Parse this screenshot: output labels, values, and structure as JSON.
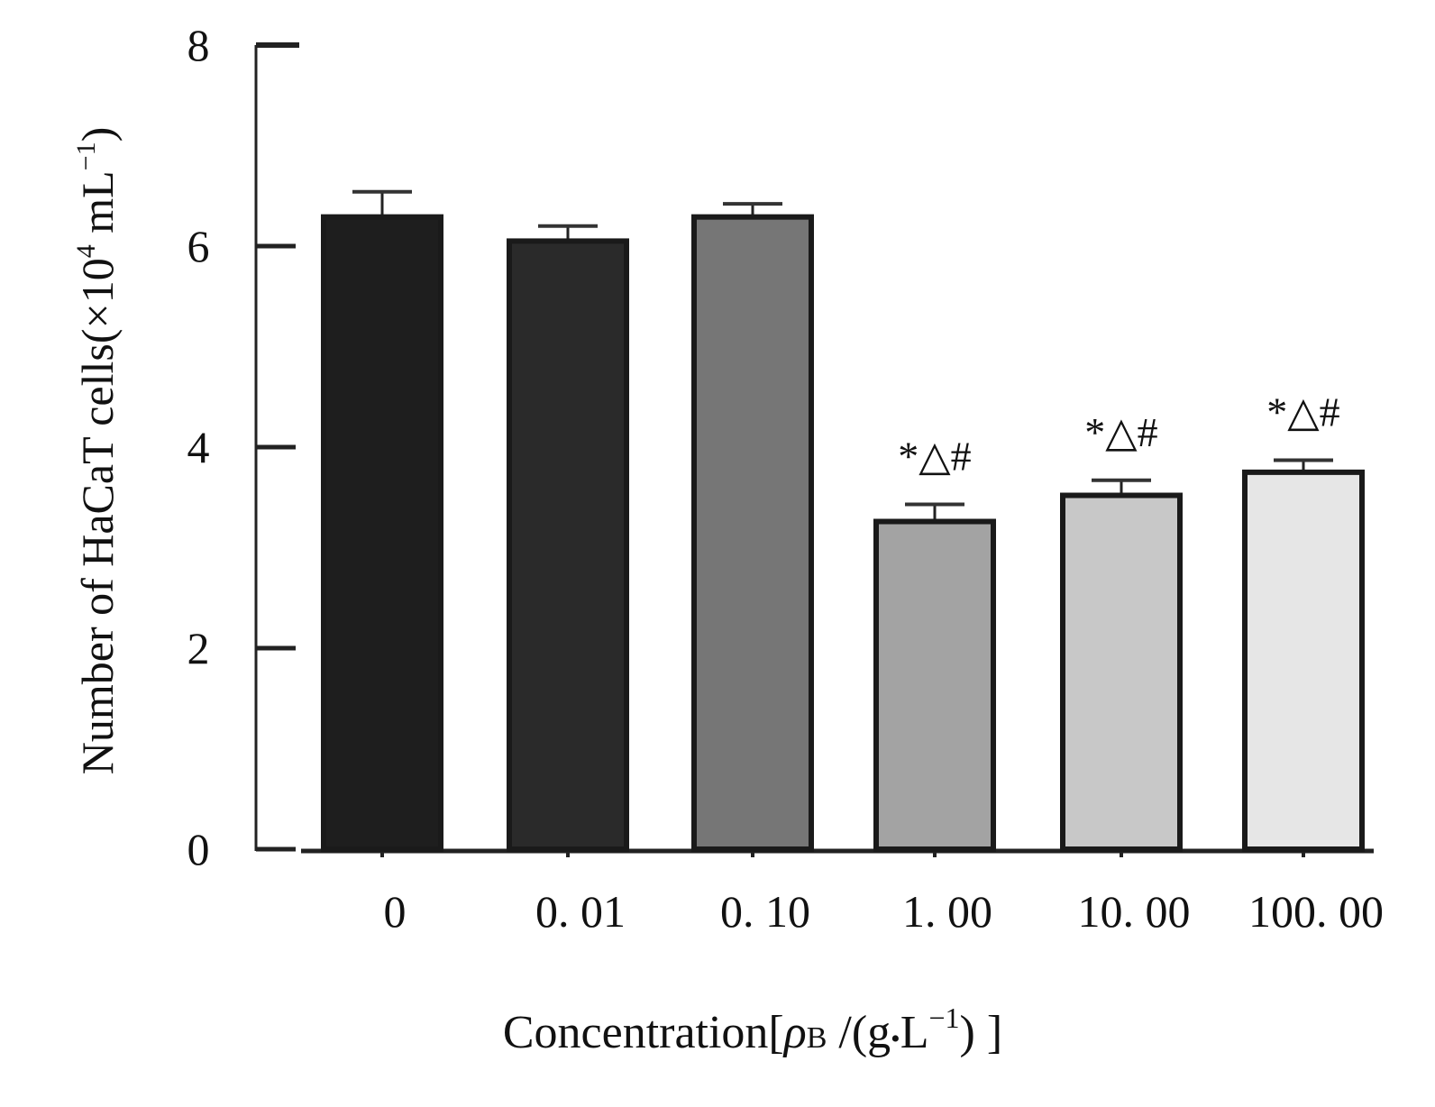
{
  "chart_data": {
    "type": "bar",
    "title": "",
    "xlabel": "Concentration[ρB /(g•L⁻¹) ]",
    "xlabel_parts": {
      "prefix": "Concentration[",
      "rho": "ρ",
      "sub": "B",
      "mid": " /(g",
      "dot": "•",
      "unit": "L",
      "sup": "−1",
      "suffix": ") ]"
    },
    "ylabel": "Number of HaCaT cells(×10⁴ mL⁻¹)",
    "ylabel_parts": {
      "prefix": "Number of HaCaT cells(",
      "times": "×",
      "base": "10",
      "exp": "4",
      "unit": " mL",
      "unit_exp": "−1",
      "suffix": ")"
    },
    "categories": [
      "0",
      "0. 01",
      "0. 10",
      "1. 00",
      "10. 00",
      "100. 00"
    ],
    "values": [
      6.29,
      6.05,
      6.29,
      3.26,
      3.52,
      3.75
    ],
    "errors": [
      0.25,
      0.15,
      0.13,
      0.17,
      0.15,
      0.12
    ],
    "annotations": [
      "",
      "",
      "",
      "*△#",
      "*△#",
      "*△#"
    ],
    "bar_colors": [
      "#1e1e1e",
      "#2a2a2a",
      "#767676",
      "#a3a3a3",
      "#c8c8c8",
      "#e6e6e6"
    ],
    "ylim": [
      0,
      8
    ],
    "yticks": [
      0,
      2,
      4,
      6,
      8
    ],
    "ytick_labels": [
      "0",
      "2",
      "4",
      "6",
      "8"
    ],
    "grid": false
  }
}
